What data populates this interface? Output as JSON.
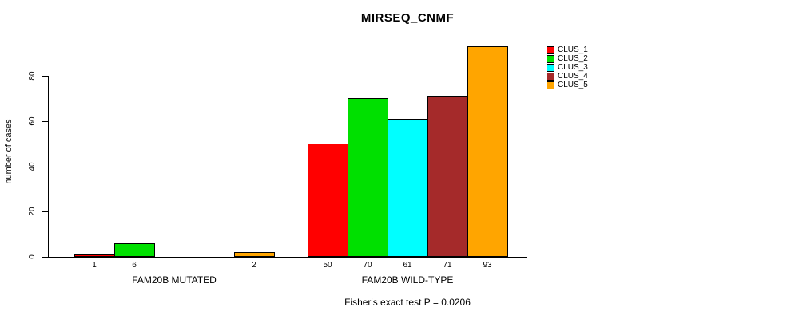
{
  "chart_data": {
    "type": "bar",
    "title": "MIRSEQ_CNMF",
    "ylabel": "number of cases",
    "xlabel": "",
    "categories": [
      "FAM20B MUTATED",
      "FAM20B WILD-TYPE"
    ],
    "series": [
      {
        "name": "CLUS_1",
        "color": "#FF0000",
        "values": [
          1,
          50
        ]
      },
      {
        "name": "CLUS_2",
        "color": "#00E000",
        "values": [
          6,
          70
        ]
      },
      {
        "name": "CLUS_3",
        "color": "#00FFFF",
        "values": [
          0,
          61
        ]
      },
      {
        "name": "CLUS_4",
        "color": "#A52A2A",
        "values": [
          0,
          71
        ]
      },
      {
        "name": "CLUS_5",
        "color": "#FFA500",
        "values": [
          2,
          93
        ]
      }
    ],
    "yticks": [
      0,
      20,
      40,
      60,
      80
    ],
    "ylim": [
      0,
      93
    ],
    "grid": false,
    "legend_position": "top-right",
    "bar_labels": {
      "show": true,
      "hide_zero": true
    },
    "footnote": "Fisher's exact test P = 0.0206",
    "colors": {
      "background": "#FFFFFF",
      "axis": "#000000",
      "text": "#000000"
    }
  }
}
